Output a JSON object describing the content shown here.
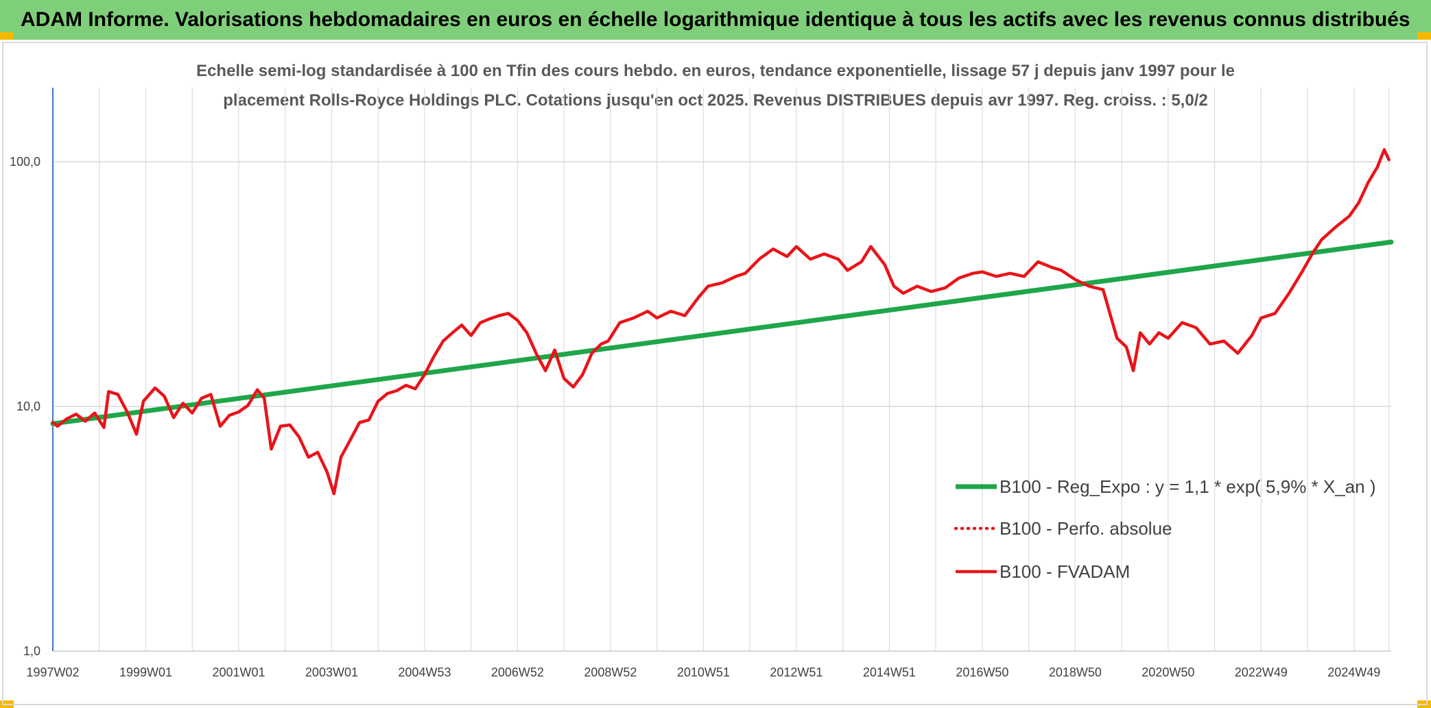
{
  "banner": {
    "title": "ADAM Informe. Valorisations hebdomadaires en euros en échelle logarithmique identique à tous les actifs avec les revenus connus distribués",
    "background": "#7fcf7a"
  },
  "chart_data": {
    "type": "line",
    "title_line1": "Echelle semi-log standardisée à 100 en Tfin des cours hebdo. en euros, tendance exponentielle, lissage 57 j depuis janv 1997 pour le",
    "title_line2": "placement Rolls-Royce Holdings PLC. Cotations jusqu'en oct 2025. Revenus DISTRIBUES depuis avr 1997. Reg. croiss. : 5,0/2",
    "y_scale": "log",
    "ylim": [
      1,
      200
    ],
    "y_ticks": [
      {
        "value": 1,
        "label": "1,0"
      },
      {
        "value": 10,
        "label": "10,0"
      },
      {
        "value": 100,
        "label": "100,0"
      }
    ],
    "xlim": [
      1997.0,
      2025.8
    ],
    "x_ticks": [
      {
        "value": 1997.0,
        "label": "1997W02"
      },
      {
        "value": 1999.0,
        "label": "1999W01"
      },
      {
        "value": 2001.0,
        "label": "2001W01"
      },
      {
        "value": 2003.0,
        "label": "2003W01"
      },
      {
        "value": 2005.0,
        "label": "2004W53"
      },
      {
        "value": 2007.0,
        "label": "2006W52"
      },
      {
        "value": 2009.0,
        "label": "2008W52"
      },
      {
        "value": 2011.0,
        "label": "2010W51"
      },
      {
        "value": 2013.0,
        "label": "2012W51"
      },
      {
        "value": 2015.0,
        "label": "2014W51"
      },
      {
        "value": 2017.0,
        "label": "2016W50"
      },
      {
        "value": 2019.0,
        "label": "2018W50"
      },
      {
        "value": 2021.0,
        "label": "2020W50"
      },
      {
        "value": 2023.0,
        "label": "2022W49"
      },
      {
        "value": 2025.0,
        "label": "2024W49"
      }
    ],
    "grid": true,
    "legend_position": "bottom-right",
    "series": [
      {
        "name": "B100 - Reg_Expo : y = 1,1 * exp( 5,9% *  X_an )",
        "color": "#1fa64a",
        "style": "solid",
        "x": [
          1997.0,
          2025.8
        ],
        "y": [
          8.5,
          47.0
        ]
      },
      {
        "name": "B100 - Perfo. absolue",
        "color": "#e8141a",
        "style": "dotted",
        "x": [],
        "y": []
      },
      {
        "name": "B100 - FVADAM",
        "color": "#e8141a",
        "style": "solid",
        "x": [
          1997.0,
          1997.1,
          1997.3,
          1997.5,
          1997.7,
          1997.9,
          1998.1,
          1998.2,
          1998.4,
          1998.6,
          1998.8,
          1998.95,
          1999.2,
          1999.4,
          1999.6,
          1999.8,
          2000.0,
          2000.2,
          2000.4,
          2000.6,
          2000.8,
          2001.0,
          2001.2,
          2001.4,
          2001.55,
          2001.7,
          2001.9,
          2002.1,
          2002.3,
          2002.5,
          2002.7,
          2002.9,
          2003.05,
          2003.2,
          2003.4,
          2003.6,
          2003.8,
          2004.0,
          2004.2,
          2004.4,
          2004.6,
          2004.8,
          2005.0,
          2005.2,
          2005.4,
          2005.6,
          2005.8,
          2006.0,
          2006.2,
          2006.4,
          2006.6,
          2006.8,
          2007.0,
          2007.2,
          2007.4,
          2007.6,
          2007.8,
          2008.0,
          2008.2,
          2008.4,
          2008.6,
          2008.8,
          2008.95,
          2009.2,
          2009.5,
          2009.8,
          2010.0,
          2010.3,
          2010.6,
          2010.9,
          2011.1,
          2011.4,
          2011.7,
          2011.9,
          2012.2,
          2012.5,
          2012.8,
          2013.0,
          2013.3,
          2013.6,
          2013.9,
          2014.1,
          2014.4,
          2014.6,
          2014.9,
          2015.1,
          2015.3,
          2015.6,
          2015.9,
          2016.2,
          2016.5,
          2016.8,
          2017.0,
          2017.3,
          2017.6,
          2017.9,
          2018.2,
          2018.5,
          2018.7,
          2019.0,
          2019.3,
          2019.6,
          2019.9,
          2020.1,
          2020.25,
          2020.4,
          2020.6,
          2020.8,
          2021.0,
          2021.3,
          2021.6,
          2021.9,
          2022.2,
          2022.5,
          2022.8,
          2023.0,
          2023.3,
          2023.6,
          2023.9,
          2024.1,
          2024.3,
          2024.6,
          2024.9,
          2025.1,
          2025.3,
          2025.5,
          2025.65,
          2025.75
        ],
        "y": [
          8.6,
          8.3,
          8.9,
          9.3,
          8.7,
          9.4,
          8.2,
          11.5,
          11.2,
          9.5,
          7.7,
          10.5,
          11.9,
          11.0,
          9.0,
          10.3,
          9.4,
          10.8,
          11.2,
          8.3,
          9.2,
          9.5,
          10.1,
          11.7,
          10.8,
          6.7,
          8.3,
          8.4,
          7.5,
          6.2,
          6.5,
          5.4,
          4.4,
          6.2,
          7.3,
          8.6,
          8.8,
          10.5,
          11.3,
          11.6,
          12.2,
          11.8,
          13.5,
          16.0,
          18.5,
          20.0,
          21.5,
          19.5,
          22.0,
          22.8,
          23.5,
          24.0,
          22.5,
          20.0,
          16.5,
          14.0,
          17.0,
          13.0,
          12.0,
          13.5,
          16.5,
          18.0,
          18.5,
          22.0,
          23.0,
          24.5,
          23.0,
          24.5,
          23.5,
          28.0,
          31.0,
          32.0,
          34.0,
          35.0,
          40.0,
          44.0,
          41.0,
          45.0,
          40.0,
          42.0,
          40.0,
          36.0,
          39.0,
          45.0,
          38.0,
          31.0,
          29.0,
          31.0,
          29.5,
          30.5,
          33.5,
          35.0,
          35.5,
          34.0,
          35.0,
          34.0,
          39.0,
          37.0,
          36.0,
          33.0,
          31.0,
          30.0,
          19.0,
          17.5,
          14.0,
          20.0,
          18.0,
          20.0,
          19.0,
          22.0,
          21.0,
          18.0,
          18.5,
          16.5,
          19.5,
          23.0,
          24.0,
          29.0,
          36.0,
          42.0,
          48.0,
          54.0,
          60.0,
          68.0,
          82.0,
          95.0,
          112.0,
          102.0
        ]
      }
    ]
  }
}
